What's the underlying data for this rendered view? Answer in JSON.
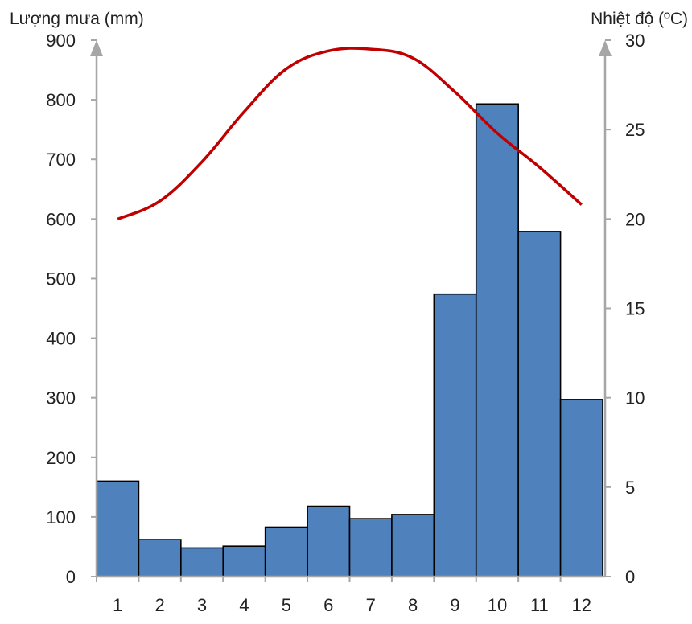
{
  "chart_data": {
    "type": "bar",
    "categories": [
      "1",
      "2",
      "3",
      "4",
      "5",
      "6",
      "7",
      "8",
      "9",
      "10",
      "11",
      "12"
    ],
    "series": [
      {
        "kind": "bar",
        "axis": "left",
        "values": [
          160,
          62,
          48,
          51,
          83,
          118,
          97,
          104,
          474,
          793,
          579,
          297
        ]
      },
      {
        "kind": "line",
        "axis": "right",
        "values": [
          20.0,
          21.0,
          23.2,
          26.0,
          28.4,
          29.4,
          29.5,
          29.0,
          27.1,
          24.8,
          22.9,
          20.8
        ]
      }
    ],
    "y_left": {
      "label": "Lượng mưa (mm)",
      "ylim": [
        0,
        900
      ],
      "ticks": [
        0,
        100,
        200,
        300,
        400,
        500,
        600,
        700,
        800,
        900
      ]
    },
    "y_right": {
      "label": "Nhiệt độ (ºC)",
      "ylim": [
        0,
        30
      ],
      "ticks": [
        0,
        5,
        10,
        15,
        20,
        25,
        30
      ]
    },
    "grid": false,
    "legend": "none",
    "colors": {
      "bar": "#4f81bd",
      "bar_edge": "#000000",
      "line": "#c00000",
      "axis": "#a6a6a6"
    }
  }
}
